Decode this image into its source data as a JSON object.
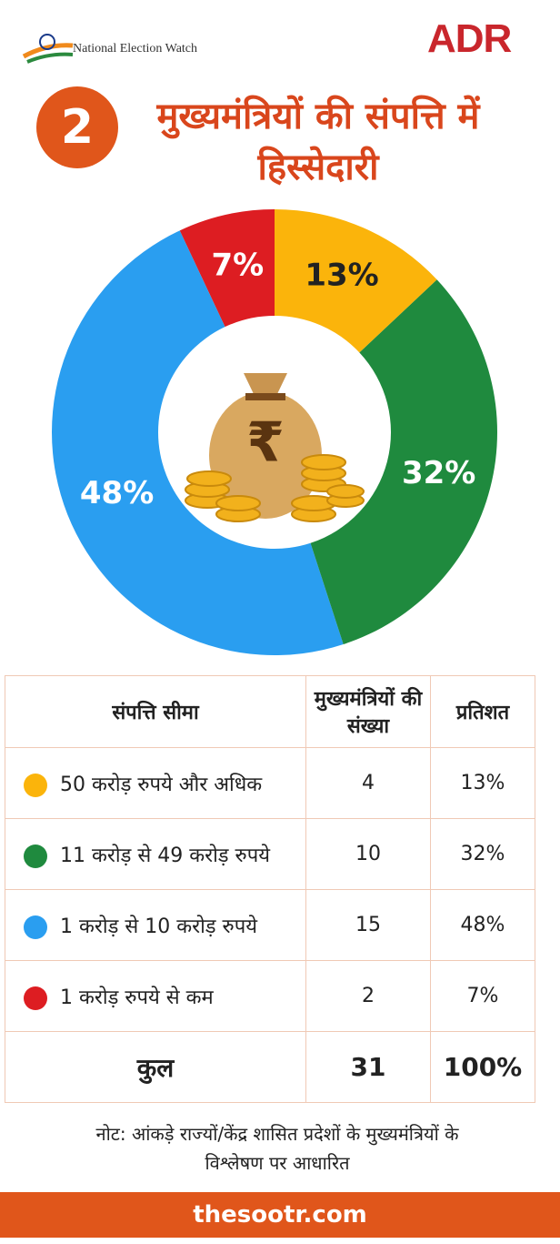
{
  "header": {
    "left_logo": "National Election Watch",
    "right_logo": "ADR",
    "badge": "2",
    "title": "मुख्यमंत्रियों की संपत्ति में हिस्सेदारी"
  },
  "chart_data": {
    "type": "pie",
    "donut": true,
    "values": [
      13,
      32,
      48,
      7
    ],
    "value_labels": [
      "13%",
      "32%",
      "48%",
      "7%"
    ],
    "colors": [
      "#fbb40b",
      "#1f8a3e",
      "#2a9ef0",
      "#dd1d22"
    ],
    "label_colors": [
      "#222222",
      "#ffffff",
      "#ffffff",
      "#ffffff"
    ]
  },
  "table": {
    "columns": [
      "संपत्ति सीमा",
      "मुख्यमंत्रियों की संख्या",
      "प्रतिशत"
    ],
    "rows": [
      [
        "50 करोड़ रुपये और अधिक",
        "4",
        "13%"
      ],
      [
        "11 करोड़ से 49 करोड़ रुपये",
        "10",
        "32%"
      ],
      [
        "1 करोड़ से 10 करोड़ रुपये",
        "15",
        "48%"
      ],
      [
        "1 करोड़ रुपये से कम",
        "2",
        "7%"
      ]
    ],
    "total": [
      "कुल",
      "31",
      "100%"
    ]
  },
  "note": "नोट: आंकड़े राज्यों/केंद्र शासित प्रदेशों के मुख्यमंत्रियों के विश्लेषण पर आधारित",
  "footer": "thesootr.com"
}
